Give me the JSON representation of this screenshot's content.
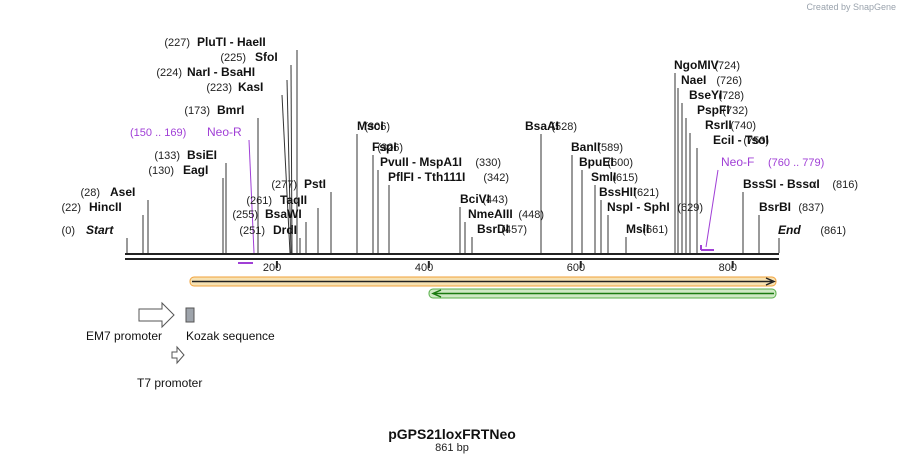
{
  "credit": "Created by SnapGene",
  "plasmid": {
    "name": "pGPS21loxFRTNeo",
    "size": "861 bp"
  },
  "axis": {
    "start": "Start",
    "end": "End",
    "ticks": [
      "200",
      "400",
      "600",
      "800"
    ]
  },
  "sites": [
    {
      "id": "site-plu-hae",
      "pos": "(227)",
      "text": "PluTI  - HaeII"
    },
    {
      "id": "site-sfoi",
      "pos": "(225)",
      "text": "SfoI"
    },
    {
      "id": "site-nar-bsah",
      "pos": "(224)",
      "text": "NarI  - BsaHI"
    },
    {
      "id": "site-kasi",
      "pos": "(223)",
      "text": "KasI"
    },
    {
      "id": "site-bmri",
      "pos": "(173)",
      "text": "BmrI"
    },
    {
      "id": "site-bsiei",
      "pos": "(133)",
      "text": "BsiEI"
    },
    {
      "id": "site-eagi",
      "pos": "(130)",
      "text": "EagI"
    },
    {
      "id": "site-asei",
      "pos": "(28)",
      "text": "AseI"
    },
    {
      "id": "site-hincii",
      "pos": "(22)",
      "text": "HincII"
    },
    {
      "id": "site-psti",
      "pos": "(277)",
      "text": "PstI"
    },
    {
      "id": "site-taqii",
      "pos": "(261)",
      "text": "TaqII"
    },
    {
      "id": "site-bsawi",
      "pos": "(255)",
      "text": "BsaWI"
    },
    {
      "id": "site-drdi",
      "pos": "(251)",
      "text": "DrdI"
    },
    {
      "id": "site-msci",
      "pos": "(306)",
      "text": "MscI"
    },
    {
      "id": "site-fspi",
      "pos": "(326)",
      "text": "FspI"
    },
    {
      "id": "site-pvu-mspa",
      "pos": "(330)",
      "text": "PvuII  - MspA1I"
    },
    {
      "id": "site-pflf-tth",
      "pos": "(342)",
      "text": "PflFI  - Tth111I"
    },
    {
      "id": "site-bcivi",
      "pos": "(443)",
      "text": "BciVI"
    },
    {
      "id": "site-nmeaiii",
      "pos": "(448)",
      "text": "NmeAIII"
    },
    {
      "id": "site-bsrdi",
      "pos": "(457)",
      "text": "BsrDI"
    },
    {
      "id": "site-bsaai",
      "pos": "(528)",
      "text": "BsaAI"
    },
    {
      "id": "site-banii",
      "pos": "(589)",
      "text": "BanII"
    },
    {
      "id": "site-bpuei",
      "pos": "(600)",
      "text": "BpuEI"
    },
    {
      "id": "site-smli",
      "pos": "(615)",
      "text": "SmlI"
    },
    {
      "id": "site-bsshii",
      "pos": "(621)",
      "text": "BssHII"
    },
    {
      "id": "site-nsp-sph",
      "pos": "(629)",
      "text": "NspI  - SphI"
    },
    {
      "id": "site-msli",
      "pos": "(661)",
      "text": "MslI"
    },
    {
      "id": "site-ngomiv",
      "pos": "(724)",
      "text": "NgoMIV"
    },
    {
      "id": "site-naei",
      "pos": "(726)",
      "text": "NaeI"
    },
    {
      "id": "site-bseyi",
      "pos": "(728)",
      "text": "BseYI"
    },
    {
      "id": "site-pspfi",
      "pos": "(732)",
      "text": "PspFI"
    },
    {
      "id": "site-rsrii",
      "pos": "(740)",
      "text": "RsrII"
    },
    {
      "id": "site-eci-tso",
      "pos": "(753)",
      "text": "EciI  - TsoI"
    },
    {
      "id": "site-bsssi",
      "pos": "(816)",
      "text": "BssSI  - BssαI"
    },
    {
      "id": "site-bsrbi",
      "pos": "(837)",
      "text": "BsrBI"
    },
    {
      "id": "site-start",
      "pos": "(0)",
      "text": "Start"
    },
    {
      "id": "site-end",
      "pos": "(861)",
      "text": "End"
    }
  ],
  "primers": [
    {
      "id": "primer-neo-r",
      "name": "Neo-R",
      "range": "(150 .. 169)"
    },
    {
      "id": "primer-neo-f",
      "name": "Neo-F",
      "range": "(760 .. 779)"
    }
  ],
  "features": {
    "em7": "EM7 promoter",
    "kozak": "Kozak sequence",
    "t7": "T7 promoter"
  },
  "colors": {
    "primer": "#a03fd6",
    "orf_orange": "#f2a23a",
    "orf_green": "#58b04a",
    "backbone": "#222222"
  }
}
